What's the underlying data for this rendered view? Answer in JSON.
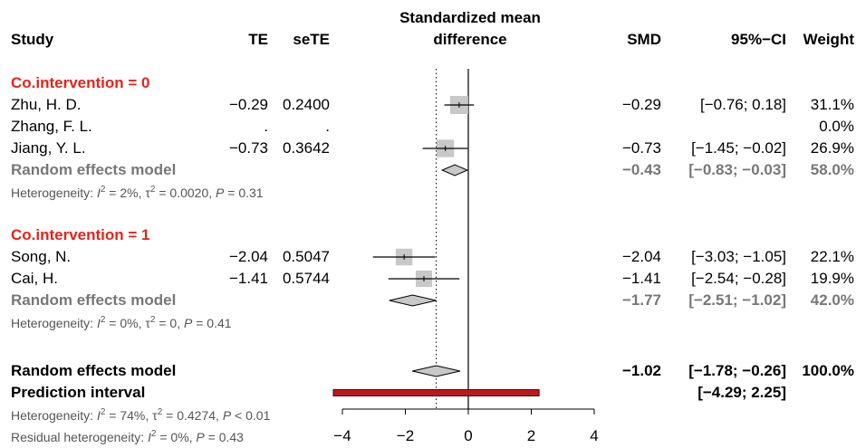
{
  "header": {
    "study": "Study",
    "te": "TE",
    "sete": "seTE",
    "smd_title_1": "Standardized mean",
    "smd_title_2": "difference",
    "smd": "SMD",
    "ci": "95%−CI",
    "weight": "Weight"
  },
  "colors": {
    "subgroup_title": "#e8211b",
    "random_effects": "#777777",
    "prediction": "#c0161c",
    "box": "#c8c8c8",
    "diamond": "#c8c8c8"
  },
  "subgroups": [
    {
      "title": "Co.intervention = 0",
      "studies": [
        {
          "name": "Zhu, H. D.",
          "te": "−0.29",
          "sete": "0.2400",
          "smd": "−0.29",
          "ci": "[−0.76;  0.18]",
          "weight": "31.1%"
        },
        {
          "name": "Zhang, F. L.",
          "te": ".",
          "sete": ".",
          "smd": "",
          "ci": "",
          "weight": "0.0%"
        },
        {
          "name": "Jiang, Y. L.",
          "te": "−0.73",
          "sete": "0.3642",
          "smd": "−0.73",
          "ci": "[−1.45; −0.02]",
          "weight": "26.9%"
        }
      ],
      "random": {
        "label": "Random effects model",
        "smd": "−0.43",
        "ci": "[−0.83; −0.03]",
        "weight": "58.0%"
      },
      "heterogeneity": {
        "prefix": "Heterogeneity: ",
        "i2_symbol": "I",
        "i2_value": " = 2%, ",
        "tau_symbol": "τ",
        "tau_value": " = 0.0020, ",
        "p_symbol": "P",
        "p_value": " = 0.31"
      }
    },
    {
      "title": "Co.intervention = 1",
      "studies": [
        {
          "name": "Song, N.",
          "te": "−2.04",
          "sete": "0.5047",
          "smd": "−2.04",
          "ci": "[−3.03; −1.05]",
          "weight": "22.1%"
        },
        {
          "name": "Cai, H.",
          "te": "−1.41",
          "sete": "0.5744",
          "smd": "−1.41",
          "ci": "[−2.54; −0.28]",
          "weight": "19.9%"
        }
      ],
      "random": {
        "label": "Random effects model",
        "smd": "−1.77",
        "ci": "[−2.51; −1.02]",
        "weight": "42.0%"
      },
      "heterogeneity": {
        "prefix": "Heterogeneity: ",
        "i2_symbol": "I",
        "i2_value": " = 0%, ",
        "tau_symbol": "τ",
        "tau_value": " = 0, ",
        "p_symbol": "P",
        "p_value": " = 0.41"
      }
    }
  ],
  "overall": {
    "label": "Random effects model",
    "smd": "−1.02",
    "ci": "[−1.78; −0.26]",
    "weight": "100.0%",
    "prediction_label": "Prediction interval",
    "prediction_ci": "[−4.29;  2.25]",
    "heterogeneity": {
      "prefix": "Heterogeneity: ",
      "i2_symbol": "I",
      "i2_value": " = 74%, ",
      "tau_symbol": "τ",
      "tau_value": " = 0.4274, ",
      "p_symbol": "P",
      "p_value": " < 0.01"
    },
    "residual": {
      "prefix": "Residual heterogeneity: ",
      "i2_symbol": "I",
      "i2_value": " = 0%, ",
      "p_symbol": "P",
      "p_value": " = 0.43"
    }
  },
  "chart_data": {
    "type": "forest",
    "xlim": [
      -4,
      4
    ],
    "xticks": [
      -4,
      -2,
      0,
      2,
      4
    ],
    "xtick_labels": [
      "−4",
      "−2",
      "0",
      "2",
      "4"
    ],
    "reference_line": 0,
    "overall_line": -1.02,
    "studies": [
      {
        "name": "Zhu, H. D.",
        "smd": -0.29,
        "lower": -0.76,
        "upper": 0.18,
        "weight": 31.1
      },
      {
        "name": "Zhang, F. L.",
        "smd": null,
        "lower": null,
        "upper": null,
        "weight": 0.0
      },
      {
        "name": "Jiang, Y. L.",
        "smd": -0.73,
        "lower": -1.45,
        "upper": -0.02,
        "weight": 26.9
      },
      {
        "name": "Song, N.",
        "smd": -2.04,
        "lower": -3.03,
        "upper": -1.05,
        "weight": 22.1
      },
      {
        "name": "Cai, H.",
        "smd": -1.41,
        "lower": -2.54,
        "upper": -0.28,
        "weight": 19.9
      }
    ],
    "subgroup_estimates": [
      {
        "name": "Co.intervention = 0",
        "smd": -0.43,
        "lower": -0.83,
        "upper": -0.03
      },
      {
        "name": "Co.intervention = 1",
        "smd": -1.77,
        "lower": -2.51,
        "upper": -1.02
      }
    ],
    "overall_estimate": {
      "smd": -1.02,
      "lower": -1.78,
      "upper": -0.26
    },
    "prediction_interval": {
      "lower": -4.29,
      "upper": 2.25
    }
  }
}
